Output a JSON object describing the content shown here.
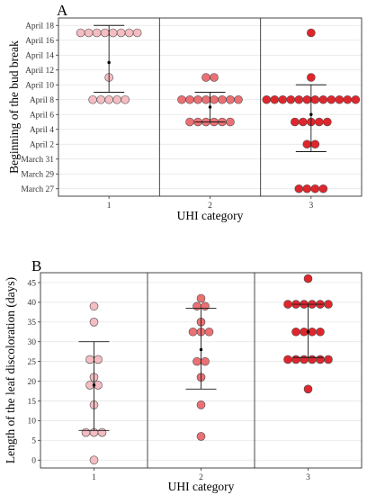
{
  "figure": {
    "panels": [
      "A",
      "B"
    ]
  },
  "chart_data": [
    {
      "type": "scatter",
      "panel_label": "A",
      "title": "",
      "xlabel": "UHI category",
      "ylabel": "Beginning of the bud break",
      "categories": [
        "1",
        "2",
        "3"
      ],
      "y_axis_kind": "date",
      "y_ticks": [
        "March 27",
        "March 29",
        "March 31",
        "April 2",
        "April 4",
        "April 6",
        "April 8",
        "April 10",
        "April 12",
        "April 14",
        "April 16",
        "April 18"
      ],
      "ylim": [
        "2021-03-26",
        "2021-04-19"
      ],
      "colors": {
        "1": "#f5bcc2",
        "2": "#eb7073",
        "3": "#e0262d"
      },
      "grid": true,
      "legend": "none",
      "points": [
        {
          "category": "1",
          "dates": [
            "2021-04-17",
            "2021-04-17",
            "2021-04-17",
            "2021-04-17",
            "2021-04-17",
            "2021-04-17",
            "2021-04-17",
            "2021-04-17",
            "2021-04-11",
            "2021-04-08",
            "2021-04-08",
            "2021-04-08",
            "2021-04-08",
            "2021-04-08"
          ]
        },
        {
          "category": "2",
          "dates": [
            "2021-04-11",
            "2021-04-11",
            "2021-04-08",
            "2021-04-08",
            "2021-04-08",
            "2021-04-08",
            "2021-04-08",
            "2021-04-08",
            "2021-04-08",
            "2021-04-08",
            "2021-04-05",
            "2021-04-05",
            "2021-04-05",
            "2021-04-05",
            "2021-04-05",
            "2021-04-05"
          ]
        },
        {
          "category": "3",
          "dates": [
            "2021-04-17",
            "2021-04-11",
            "2021-04-08",
            "2021-04-08",
            "2021-04-08",
            "2021-04-08",
            "2021-04-08",
            "2021-04-08",
            "2021-04-08",
            "2021-04-08",
            "2021-04-08",
            "2021-04-08",
            "2021-04-08",
            "2021-04-08",
            "2021-04-05",
            "2021-04-05",
            "2021-04-05",
            "2021-04-05",
            "2021-04-05",
            "2021-04-02",
            "2021-04-02",
            "2021-03-27",
            "2021-03-27",
            "2021-03-27",
            "2021-03-27"
          ]
        }
      ],
      "summary": [
        {
          "category": "1",
          "mean": "2021-04-13",
          "lower": "2021-04-09",
          "upper": "2021-04-18"
        },
        {
          "category": "2",
          "mean": "2021-04-07",
          "lower": "2021-04-05",
          "upper": "2021-04-09"
        },
        {
          "category": "3",
          "mean": "2021-04-06",
          "lower": "2021-04-01",
          "upper": "2021-04-10"
        }
      ]
    },
    {
      "type": "scatter",
      "panel_label": "B",
      "title": "",
      "xlabel": "UHI category",
      "ylabel": "Length of the leaf discoloration (days)",
      "categories": [
        "1",
        "2",
        "3"
      ],
      "y_ticks": [
        0,
        5,
        10,
        15,
        20,
        25,
        30,
        35,
        40,
        45
      ],
      "ylim": [
        -2,
        47.5
      ],
      "colors": {
        "1": "#f5bcc2",
        "2": "#eb7073",
        "3": "#e0262d"
      },
      "grid": true,
      "legend": "none",
      "points": [
        {
          "category": "1",
          "values": [
            39,
            35,
            25.5,
            25.5,
            21,
            19,
            19,
            14,
            7,
            7,
            7,
            0
          ]
        },
        {
          "category": "2",
          "values": [
            41,
            39,
            39,
            35,
            32.5,
            32.5,
            32.5,
            25,
            25,
            21,
            14,
            6
          ]
        },
        {
          "category": "3",
          "values": [
            46,
            39.5,
            39.5,
            39.5,
            39.5,
            39.5,
            39.5,
            32.5,
            32.5,
            32.5,
            32.5,
            25.5,
            25.5,
            25.5,
            25.5,
            25.5,
            25.5,
            18
          ]
        }
      ],
      "summary": [
        {
          "category": "1",
          "mean": 19,
          "lower": 7.5,
          "upper": 30
        },
        {
          "category": "2",
          "mean": 28,
          "lower": 18,
          "upper": 38.5
        },
        {
          "category": "3",
          "mean": 32.5,
          "lower": 26,
          "upper": 39.5
        }
      ]
    }
  ]
}
